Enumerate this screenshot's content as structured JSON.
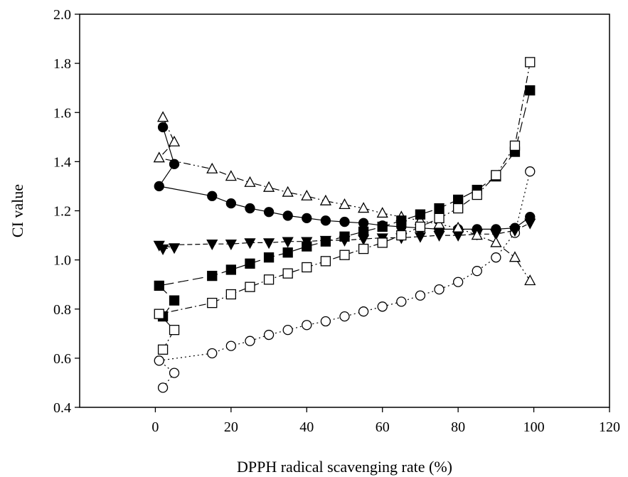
{
  "chart_data": {
    "type": "line",
    "title": "",
    "xlabel": "DPPH radical scavenging rate (%)",
    "ylabel": "CI value",
    "xlim": [
      -20,
      120
    ],
    "ylim": [
      0.4,
      2.0
    ],
    "xticks": [
      0,
      20,
      40,
      60,
      80,
      100,
      120
    ],
    "yticks": [
      0.4,
      0.6,
      0.8,
      1.0,
      1.2,
      1.4,
      1.6,
      1.8,
      2.0
    ],
    "ytick_labels": [
      "0.4",
      "0.6",
      "0.8",
      "1.0",
      "1.2",
      "1.4",
      "1.6",
      "1.8",
      "2.0"
    ],
    "grid": false,
    "legend": "none",
    "series": [
      {
        "marker": "circle-filled",
        "line_style": "solid",
        "points": [
          [
            2,
            1.54
          ],
          [
            5,
            1.39
          ],
          [
            1,
            1.3
          ],
          [
            15,
            1.26
          ],
          [
            20,
            1.23
          ],
          [
            25,
            1.21
          ],
          [
            30,
            1.195
          ],
          [
            35,
            1.18
          ],
          [
            40,
            1.17
          ],
          [
            45,
            1.16
          ],
          [
            50,
            1.155
          ],
          [
            55,
            1.15
          ],
          [
            60,
            1.14
          ],
          [
            65,
            1.135
          ],
          [
            70,
            1.13
          ],
          [
            75,
            1.125
          ],
          [
            80,
            1.125
          ],
          [
            85,
            1.125
          ],
          [
            90,
            1.125
          ],
          [
            95,
            1.13
          ],
          [
            99,
            1.175
          ]
        ]
      },
      {
        "marker": "circle-open",
        "line_style": "dotted",
        "points": [
          [
            2,
            0.48
          ],
          [
            5,
            0.54
          ],
          [
            1,
            0.59
          ],
          [
            15,
            0.62
          ],
          [
            20,
            0.65
          ],
          [
            25,
            0.67
          ],
          [
            30,
            0.695
          ],
          [
            35,
            0.715
          ],
          [
            40,
            0.735
          ],
          [
            45,
            0.75
          ],
          [
            50,
            0.77
          ],
          [
            55,
            0.79
          ],
          [
            60,
            0.81
          ],
          [
            65,
            0.83
          ],
          [
            70,
            0.855
          ],
          [
            75,
            0.88
          ],
          [
            80,
            0.91
          ],
          [
            85,
            0.955
          ],
          [
            90,
            1.01
          ],
          [
            95,
            1.11
          ],
          [
            99,
            1.36
          ]
        ]
      },
      {
        "marker": "triangle-down-filled",
        "line_style": "short-dash",
        "points": [
          [
            2,
            1.045
          ],
          [
            5,
            1.05
          ],
          [
            1,
            1.06
          ],
          [
            15,
            1.065
          ],
          [
            20,
            1.065
          ],
          [
            25,
            1.07
          ],
          [
            30,
            1.07
          ],
          [
            35,
            1.075
          ],
          [
            40,
            1.075
          ],
          [
            45,
            1.08
          ],
          [
            50,
            1.08
          ],
          [
            55,
            1.085
          ],
          [
            60,
            1.09
          ],
          [
            65,
            1.09
          ],
          [
            70,
            1.095
          ],
          [
            75,
            1.1
          ],
          [
            80,
            1.1
          ],
          [
            85,
            1.105
          ],
          [
            90,
            1.105
          ],
          [
            95,
            1.12
          ],
          [
            99,
            1.15
          ]
        ]
      },
      {
        "marker": "triangle-up-open",
        "line_style": "dash-dot-dot",
        "points": [
          [
            2,
            1.58
          ],
          [
            5,
            1.48
          ],
          [
            1,
            1.415
          ],
          [
            15,
            1.37
          ],
          [
            20,
            1.34
          ],
          [
            25,
            1.315
          ],
          [
            30,
            1.295
          ],
          [
            35,
            1.275
          ],
          [
            40,
            1.26
          ],
          [
            45,
            1.24
          ],
          [
            50,
            1.225
          ],
          [
            55,
            1.21
          ],
          [
            60,
            1.19
          ],
          [
            65,
            1.175
          ],
          [
            70,
            1.16
          ],
          [
            75,
            1.145
          ],
          [
            80,
            1.13
          ],
          [
            85,
            1.1
          ],
          [
            90,
            1.07
          ],
          [
            95,
            1.01
          ],
          [
            99,
            0.915
          ]
        ]
      },
      {
        "marker": "square-filled",
        "line_style": "long-dash",
        "points": [
          [
            2,
            0.77
          ],
          [
            5,
            0.835
          ],
          [
            1,
            0.895
          ],
          [
            15,
            0.935
          ],
          [
            20,
            0.96
          ],
          [
            25,
            0.985
          ],
          [
            30,
            1.01
          ],
          [
            35,
            1.03
          ],
          [
            40,
            1.055
          ],
          [
            45,
            1.075
          ],
          [
            50,
            1.095
          ],
          [
            55,
            1.115
          ],
          [
            60,
            1.135
          ],
          [
            65,
            1.16
          ],
          [
            70,
            1.185
          ],
          [
            75,
            1.21
          ],
          [
            80,
            1.245
          ],
          [
            85,
            1.285
          ],
          [
            90,
            1.34
          ],
          [
            95,
            1.44
          ],
          [
            99,
            1.69
          ]
        ]
      },
      {
        "marker": "square-open",
        "line_style": "dash-dot",
        "points": [
          [
            2,
            0.635
          ],
          [
            5,
            0.715
          ],
          [
            1,
            0.78
          ],
          [
            15,
            0.825
          ],
          [
            20,
            0.86
          ],
          [
            25,
            0.89
          ],
          [
            30,
            0.92
          ],
          [
            35,
            0.945
          ],
          [
            40,
            0.97
          ],
          [
            45,
            0.995
          ],
          [
            50,
            1.02
          ],
          [
            55,
            1.045
          ],
          [
            60,
            1.07
          ],
          [
            65,
            1.1
          ],
          [
            70,
            1.135
          ],
          [
            75,
            1.17
          ],
          [
            80,
            1.21
          ],
          [
            85,
            1.265
          ],
          [
            90,
            1.345
          ],
          [
            95,
            1.465
          ],
          [
            99,
            1.805
          ]
        ]
      }
    ]
  }
}
